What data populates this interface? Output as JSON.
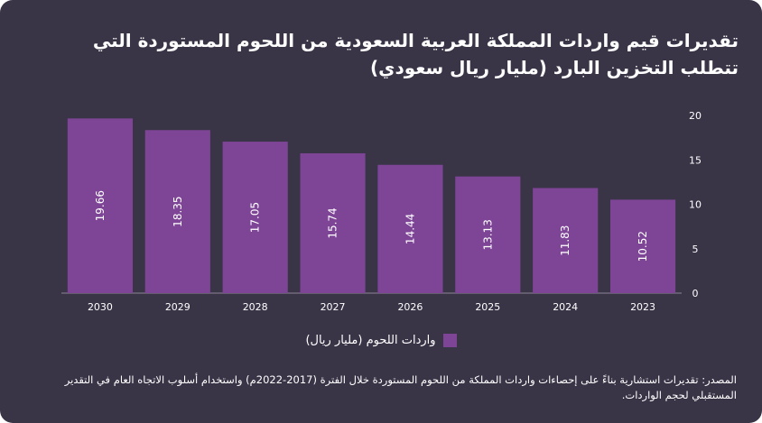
{
  "title": "تقديرات قيم واردات المملكة العربية السعودية من اللحوم المستوردة التي تتطلب التخزين البارد (مليار ريال سعودي)",
  "colors": {
    "background": "#3a3447",
    "bar": "#7e4597",
    "text": "#ffffff",
    "axis": "#8a8496"
  },
  "chart_data": {
    "type": "bar",
    "title": "تقديرات قيم واردات المملكة العربية السعودية من اللحوم المستوردة التي تتطلب التخزين البارد (مليار ريال سعودي)",
    "categories": [
      "2030",
      "2029",
      "2028",
      "2027",
      "2026",
      "2025",
      "2024",
      "2023"
    ],
    "series": [
      {
        "name": "واردات اللحوم (مليار ريال)",
        "values": [
          19.66,
          18.35,
          17.05,
          15.74,
          14.44,
          13.13,
          11.83,
          10.52
        ]
      }
    ],
    "value_labels": [
      "19.66",
      "18.35",
      "17.05",
      "15.74",
      "14.44",
      "13.13",
      "11.83",
      "10.52"
    ],
    "yticks": [
      0,
      5,
      10,
      15,
      20
    ],
    "ylim": [
      0,
      20
    ],
    "xlabel": "",
    "ylabel": "",
    "legend": "bottom-center",
    "grid": false
  },
  "legend": {
    "label": "واردات اللحوم (مليار ريال)"
  },
  "source": "المصدر: تقديرات استشارية بناءً على إحصاءات واردات المملكة من اللحوم المستوردة خلال الفترة (2017-2022م) واستخدام أسلوب الاتجاه العام في التقدير المستقبلي لحجم الواردات."
}
